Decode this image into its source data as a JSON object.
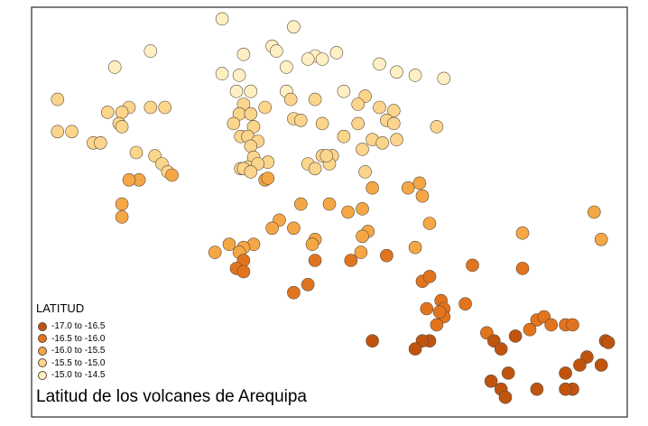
{
  "chart_data": {
    "type": "scatter",
    "title": "Latitud de los volcanes de Arequipa",
    "legend": {
      "title": "LATITUD",
      "placement": "bottom-left",
      "classes": [
        {
          "label": "-17.0 to -16.5",
          "color": "#c0540f"
        },
        {
          "label": "-16.5 to -16.0",
          "color": "#e3741e"
        },
        {
          "label": "-16.0 to -15.5",
          "color": "#f5a746"
        },
        {
          "label": "-15.5 to -15.0",
          "color": "#fbd58c"
        },
        {
          "label": "-15.0 to -14.5",
          "color": "#fff0c4"
        }
      ]
    },
    "xlim": [
      -75.0,
      -70.9
    ],
    "ylim": [
      -17.0,
      -14.5
    ],
    "grid": false,
    "points": [
      [
        -73.7,
        -14.55
      ],
      [
        -73.2,
        -14.6
      ],
      [
        -74.2,
        -14.75
      ],
      [
        -73.35,
        -14.72
      ],
      [
        -73.32,
        -14.75
      ],
      [
        -73.05,
        -14.78
      ],
      [
        -72.9,
        -14.76
      ],
      [
        -73.55,
        -14.77
      ],
      [
        -73.0,
        -14.8
      ],
      [
        -73.25,
        -14.85
      ],
      [
        -74.45,
        -14.85
      ],
      [
        -72.6,
        -14.83
      ],
      [
        -72.48,
        -14.88
      ],
      [
        -72.35,
        -14.9
      ],
      [
        -72.15,
        -14.92
      ],
      [
        -73.1,
        -14.8
      ],
      [
        -73.7,
        -14.89
      ],
      [
        -73.58,
        -14.9
      ],
      [
        -73.5,
        -15.0
      ],
      [
        -73.25,
        -15.0
      ],
      [
        -73.22,
        -15.05
      ],
      [
        -73.6,
        -15.0
      ],
      [
        -72.85,
        -15.0
      ],
      [
        -72.7,
        -15.03
      ],
      [
        -73.05,
        -15.05
      ],
      [
        -74.85,
        -15.05
      ],
      [
        -74.35,
        -15.1
      ],
      [
        -74.2,
        -15.1
      ],
      [
        -74.1,
        -15.1
      ],
      [
        -73.55,
        -15.08
      ],
      [
        -73.4,
        -15.1
      ],
      [
        -72.75,
        -15.08
      ],
      [
        -72.6,
        -15.1
      ],
      [
        -72.5,
        -15.12
      ],
      [
        -74.5,
        -15.13
      ],
      [
        -74.4,
        -15.13
      ],
      [
        -73.58,
        -15.14
      ],
      [
        -73.5,
        -15.14
      ],
      [
        -73.2,
        -15.17
      ],
      [
        -73.15,
        -15.18
      ],
      [
        -73.0,
        -15.2
      ],
      [
        -72.75,
        -15.2
      ],
      [
        -72.55,
        -15.18
      ],
      [
        -72.5,
        -15.2
      ],
      [
        -74.42,
        -15.2
      ],
      [
        -74.4,
        -15.22
      ],
      [
        -73.62,
        -15.2
      ],
      [
        -73.48,
        -15.22
      ],
      [
        -72.2,
        -15.22
      ],
      [
        -74.85,
        -15.25
      ],
      [
        -74.75,
        -15.25
      ],
      [
        -73.57,
        -15.28
      ],
      [
        -73.52,
        -15.28
      ],
      [
        -72.85,
        -15.28
      ],
      [
        -72.65,
        -15.3
      ],
      [
        -72.58,
        -15.32
      ],
      [
        -72.48,
        -15.3
      ],
      [
        -74.6,
        -15.32
      ],
      [
        -74.55,
        -15.32
      ],
      [
        -73.45,
        -15.31
      ],
      [
        -73.5,
        -15.34
      ],
      [
        -72.72,
        -15.36
      ],
      [
        -73.48,
        -15.41
      ],
      [
        -73.38,
        -15.44
      ],
      [
        -73.0,
        -15.4
      ],
      [
        -72.93,
        -15.4
      ],
      [
        -74.3,
        -15.38
      ],
      [
        -74.17,
        -15.4
      ],
      [
        -74.12,
        -15.45
      ],
      [
        -73.57,
        -15.48
      ],
      [
        -73.52,
        -15.47
      ],
      [
        -73.45,
        -15.45
      ],
      [
        -73.1,
        -15.45
      ],
      [
        -73.05,
        -15.48
      ],
      [
        -72.95,
        -15.45
      ],
      [
        -72.97,
        -15.4
      ],
      [
        -73.55,
        -15.48
      ],
      [
        -73.5,
        -15.5
      ],
      [
        -74.08,
        -15.5
      ],
      [
        -74.05,
        -15.52
      ],
      [
        -74.28,
        -15.55
      ],
      [
        -73.4,
        -15.55
      ],
      [
        -73.38,
        -15.54
      ],
      [
        -72.7,
        -15.5
      ],
      [
        -72.65,
        -15.6
      ],
      [
        -74.35,
        -15.55
      ],
      [
        -72.4,
        -15.6
      ],
      [
        -72.3,
        -15.65
      ],
      [
        -72.32,
        -15.57
      ],
      [
        -74.4,
        -15.7
      ],
      [
        -73.15,
        -15.7
      ],
      [
        -72.95,
        -15.7
      ],
      [
        -72.82,
        -15.75
      ],
      [
        -72.72,
        -15.73
      ],
      [
        -74.4,
        -15.78
      ],
      [
        -73.3,
        -15.8
      ],
      [
        -73.35,
        -15.85
      ],
      [
        -73.2,
        -15.85
      ],
      [
        -72.68,
        -15.87
      ],
      [
        -72.25,
        -15.82
      ],
      [
        -72.35,
        -15.97
      ],
      [
        -73.48,
        -15.95
      ],
      [
        -73.55,
        -15.97
      ],
      [
        -73.65,
        -15.95
      ],
      [
        -73.58,
        -16.0
      ],
      [
        -73.05,
        -15.92
      ],
      [
        -73.07,
        -15.95
      ],
      [
        -72.73,
        -16.0
      ],
      [
        -72.72,
        -15.9
      ],
      [
        -73.75,
        -16.0
      ],
      [
        -73.05,
        -16.05
      ],
      [
        -72.8,
        -16.05
      ],
      [
        -71.95,
        -16.08
      ],
      [
        -71.6,
        -16.1
      ],
      [
        -73.55,
        -16.05
      ],
      [
        -73.6,
        -16.1
      ],
      [
        -71.1,
        -15.75
      ],
      [
        -72.55,
        -16.02
      ],
      [
        -71.05,
        -15.92
      ],
      [
        -71.6,
        -15.88
      ],
      [
        -73.55,
        -16.12
      ],
      [
        -72.3,
        -16.18
      ],
      [
        -72.25,
        -16.15
      ],
      [
        -73.1,
        -16.2
      ],
      [
        -73.2,
        -16.25
      ],
      [
        -72.17,
        -16.3
      ],
      [
        -72.27,
        -16.35
      ],
      [
        -72.15,
        -16.35
      ],
      [
        -72.15,
        -16.4
      ],
      [
        -72.2,
        -16.45
      ],
      [
        -72.0,
        -16.32
      ],
      [
        -72.18,
        -16.37
      ],
      [
        -71.5,
        -16.42
      ],
      [
        -71.45,
        -16.4
      ],
      [
        -71.3,
        -16.45
      ],
      [
        -71.25,
        -16.45
      ],
      [
        -71.4,
        -16.45
      ],
      [
        -71.85,
        -16.5
      ],
      [
        -71.55,
        -16.48
      ],
      [
        -72.25,
        -16.55
      ],
      [
        -72.3,
        -16.55
      ],
      [
        -71.65,
        -16.52
      ],
      [
        -72.65,
        -16.55
      ],
      [
        -72.35,
        -16.6
      ],
      [
        -71.8,
        -16.55
      ],
      [
        -71.02,
        -16.55
      ],
      [
        -71.0,
        -16.56
      ],
      [
        -71.75,
        -16.6
      ],
      [
        -71.15,
        -16.65
      ],
      [
        -71.2,
        -16.7
      ],
      [
        -71.3,
        -16.75
      ],
      [
        -71.05,
        -16.7
      ],
      [
        -71.7,
        -16.75
      ],
      [
        -71.75,
        -16.85
      ],
      [
        -71.82,
        -16.8
      ],
      [
        -71.5,
        -16.85
      ],
      [
        -71.25,
        -16.85
      ],
      [
        -71.3,
        -16.85
      ],
      [
        -71.72,
        -16.9
      ]
    ]
  }
}
